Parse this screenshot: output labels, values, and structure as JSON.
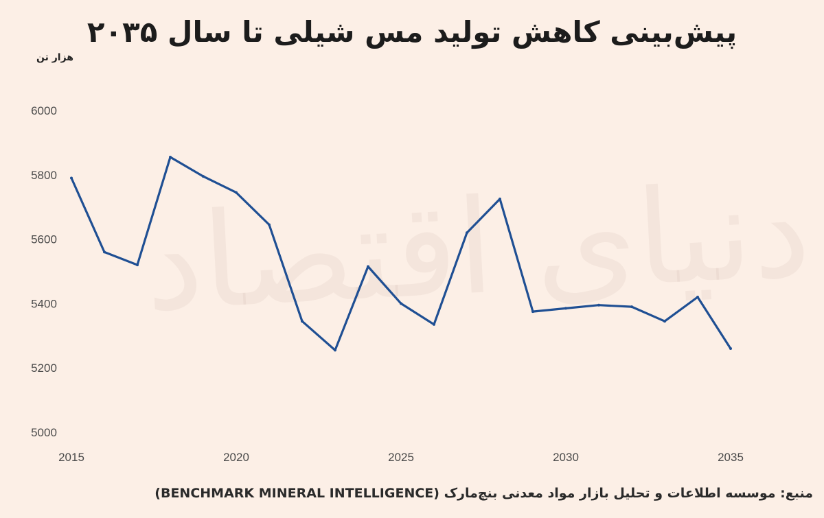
{
  "title": "پیش‌بینی کاهش تولید مس شیلی تا سال ۲۰۳۵",
  "unit_label": "هزار تن",
  "source": "منبع: موسسه اطلاعات و تحلیل بازار مواد معدنی بنچ‌مارک (BENCHMARK MINERAL INTELLIGENCE)",
  "watermark": "دنیای اقتصاد",
  "chart_data": {
    "type": "line",
    "x": [
      2015,
      2016,
      2017,
      2018,
      2019,
      2020,
      2021,
      2022,
      2023,
      2024,
      2025,
      2026,
      2027,
      2028,
      2029,
      2030,
      2031,
      2032,
      2033,
      2034,
      2035
    ],
    "y": [
      5790,
      5560,
      5520,
      5855,
      5795,
      5745,
      5645,
      5345,
      5255,
      5515,
      5400,
      5335,
      5620,
      5725,
      5375,
      5385,
      5395,
      5390,
      5345,
      5420,
      5260
    ],
    "title": "پیش‌بینی کاهش تولید مس شیلی تا سال ۲۰۳۵",
    "ylabel": "هزار تن",
    "xlabel": "",
    "xlim": [
      2015,
      2035
    ],
    "ylim": [
      5000,
      6000
    ],
    "xticks": [
      "2015",
      "2020",
      "2025",
      "2030",
      "2035"
    ],
    "yticks": [
      "5000",
      "5200",
      "5400",
      "5600",
      "5800",
      "6000"
    ],
    "grid": false,
    "line_color": "#1f4f93"
  }
}
